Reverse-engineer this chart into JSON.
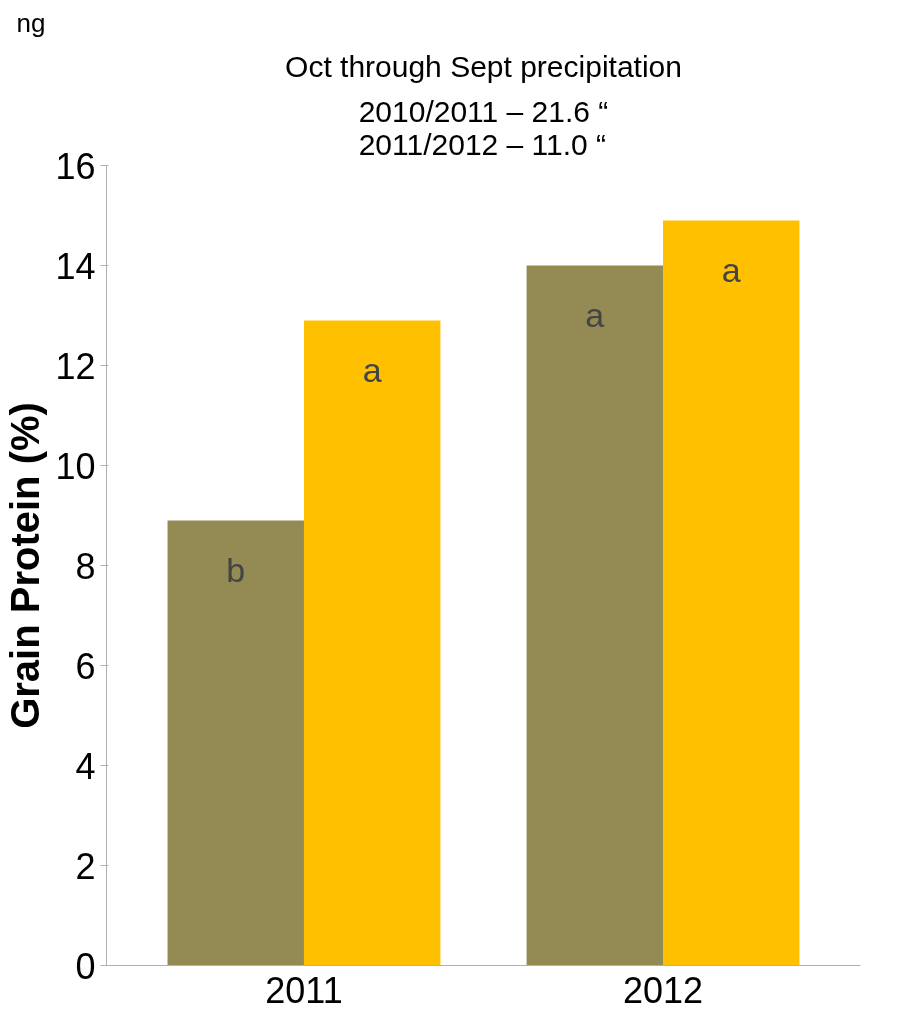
{
  "chart_data": {
    "type": "bar",
    "title": "Oct through Sept precipitation",
    "subtitle": "2010/2011 – 21.6 “\n2011/2012 – 11.0 “",
    "ylabel": "Grain Protein (%)",
    "categories": [
      "2011",
      "2012"
    ],
    "series": [
      {
        "color": "#948a54",
        "values": [
          8.9,
          14.0
        ]
      },
      {
        "color": "#ffc000",
        "values": [
          12.9,
          14.9
        ]
      }
    ],
    "ylim": [
      0,
      16
    ],
    "yticks": [
      0,
      2,
      4,
      6,
      8,
      10,
      12,
      14,
      16
    ],
    "grid": false,
    "annotations": [
      {
        "text": "b",
        "x": "2011",
        "y": 8.9
      },
      {
        "text": "a",
        "x": "2011",
        "y": 12.9
      },
      {
        "text": "a",
        "x": "2012",
        "y": 14.0
      },
      {
        "text": "a",
        "x": "2012",
        "y": 14.9
      },
      "ng"
    ]
  }
}
